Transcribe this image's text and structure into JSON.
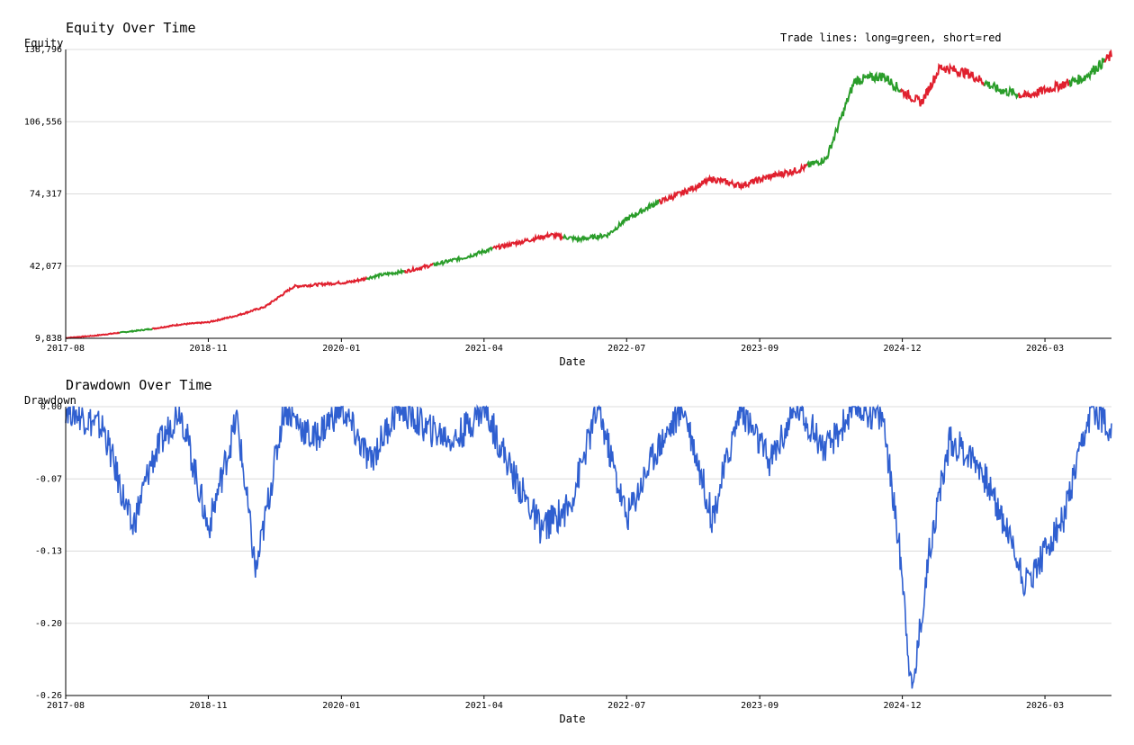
{
  "chart_data": [
    {
      "type": "line",
      "title": "Equity Over Time",
      "xlabel": "Date",
      "ylabel": "Equity",
      "annotation": "Trade lines: long=green, short=red",
      "x_range": [
        "2017-08",
        "2026-10"
      ],
      "ylim": [
        9838,
        138796
      ],
      "y_ticks": [
        "9,838",
        "42,077",
        "74,317",
        "106,556",
        "138,796"
      ],
      "x_ticks": [
        "2017-08",
        "2018-11",
        "2020-01",
        "2021-04",
        "2022-07",
        "2023-09",
        "2024-12",
        "2026-03"
      ],
      "colors": {
        "long": "#2a9d2a",
        "short": "#e0202e"
      },
      "series": [
        {
          "x": [
            "2017-08",
            "2017-11",
            "2018-02",
            "2018-05",
            "2018-08",
            "2018-11",
            "2019-02",
            "2019-05",
            "2019-08",
            "2019-11",
            "2020-02",
            "2020-05",
            "2020-08",
            "2020-11",
            "2021-02",
            "2021-05",
            "2021-08",
            "2021-11",
            "2022-02",
            "2022-05",
            "2022-07",
            "2022-10",
            "2023-01",
            "2023-04",
            "2023-07",
            "2023-10",
            "2024-01",
            "2024-04",
            "2024-07",
            "2024-10",
            "2024-12",
            "2025-02",
            "2025-04",
            "2025-07",
            "2025-10",
            "2026-01",
            "2026-04",
            "2026-07",
            "2026-10"
          ],
          "y": [
            10000,
            11000,
            12500,
            14000,
            16000,
            17000,
            20000,
            24000,
            33000,
            34000,
            35000,
            38000,
            40000,
            43000,
            46000,
            50000,
            53000,
            56000,
            54000,
            56000,
            63000,
            70000,
            75000,
            81000,
            78000,
            82000,
            85000,
            90000,
            125000,
            127000,
            120000,
            115000,
            131000,
            128000,
            121000,
            118000,
            122000,
            126000,
            136000
          ]
        }
      ]
    },
    {
      "type": "line",
      "title": "Drawdown Over Time",
      "xlabel": "Date",
      "ylabel": "Drawdown",
      "x_range": [
        "2017-08",
        "2026-10"
      ],
      "ylim": [
        -0.26,
        0.0
      ],
      "y_ticks": [
        "0.00",
        "-0.07",
        "-0.13",
        "-0.20",
        "-0.26"
      ],
      "x_ticks": [
        "2017-08",
        "2018-11",
        "2020-01",
        "2021-04",
        "2022-07",
        "2023-09",
        "2024-12",
        "2026-03"
      ],
      "colors": {
        "line": "#2f5fd0"
      },
      "series": [
        {
          "x": [
            "2017-08",
            "2017-12",
            "2018-03",
            "2018-05",
            "2018-08",
            "2018-11",
            "2019-02",
            "2019-04",
            "2019-07",
            "2019-10",
            "2020-01",
            "2020-04",
            "2020-07",
            "2020-10",
            "2021-01",
            "2021-04",
            "2021-07",
            "2021-10",
            "2022-01",
            "2022-04",
            "2022-07",
            "2022-10",
            "2023-01",
            "2023-04",
            "2023-07",
            "2023-10",
            "2024-01",
            "2024-04",
            "2024-07",
            "2024-10",
            "2024-12",
            "2025-01",
            "2025-03",
            "2025-05",
            "2025-08",
            "2025-11",
            "2026-01",
            "2026-03",
            "2026-05",
            "2026-08",
            "2026-10"
          ],
          "y": [
            0.0,
            -0.02,
            -0.11,
            -0.05,
            0.0,
            -0.11,
            -0.01,
            -0.15,
            0.0,
            -0.03,
            0.0,
            -0.05,
            0.0,
            -0.02,
            -0.03,
            0.0,
            -0.06,
            -0.11,
            -0.09,
            0.0,
            -0.1,
            -0.04,
            0.0,
            -0.1,
            0.0,
            -0.05,
            0.0,
            -0.04,
            0.0,
            -0.01,
            -0.15,
            -0.26,
            -0.12,
            -0.03,
            -0.05,
            -0.11,
            -0.16,
            -0.13,
            -0.1,
            0.0,
            -0.02
          ]
        }
      ]
    }
  ]
}
